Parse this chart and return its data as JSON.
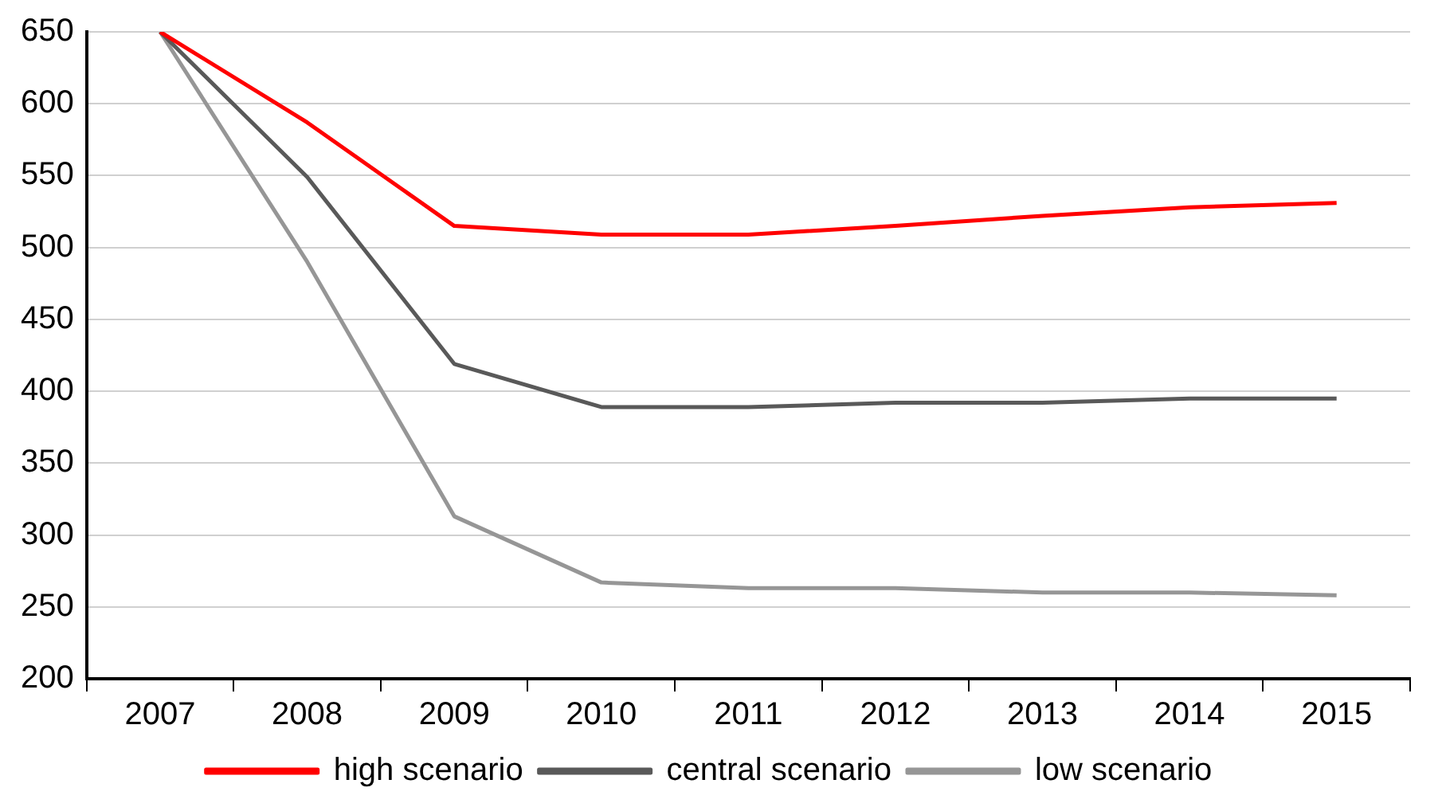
{
  "chart_data": {
    "type": "line",
    "categories": [
      "2007",
      "2008",
      "2009",
      "2010",
      "2011",
      "2012",
      "2013",
      "2014",
      "2015"
    ],
    "series": [
      {
        "name": "high scenario",
        "color": "#ff0000",
        "values": [
          650,
          587,
          515,
          509,
          509,
          515,
          522,
          528,
          531
        ]
      },
      {
        "name": "central scenario",
        "color": "#595959",
        "values": [
          650,
          549,
          419,
          389,
          389,
          392,
          392,
          395,
          395
        ]
      },
      {
        "name": "low scenario",
        "color": "#969696",
        "values": [
          650,
          490,
          313,
          267,
          263,
          263,
          260,
          260,
          258
        ]
      }
    ],
    "ylim": [
      200,
      650
    ],
    "yticks": [
      200,
      250,
      300,
      350,
      400,
      450,
      500,
      550,
      600,
      650
    ],
    "grid": "y",
    "legend": "bottom",
    "marker": "none",
    "line_style": "solid"
  }
}
